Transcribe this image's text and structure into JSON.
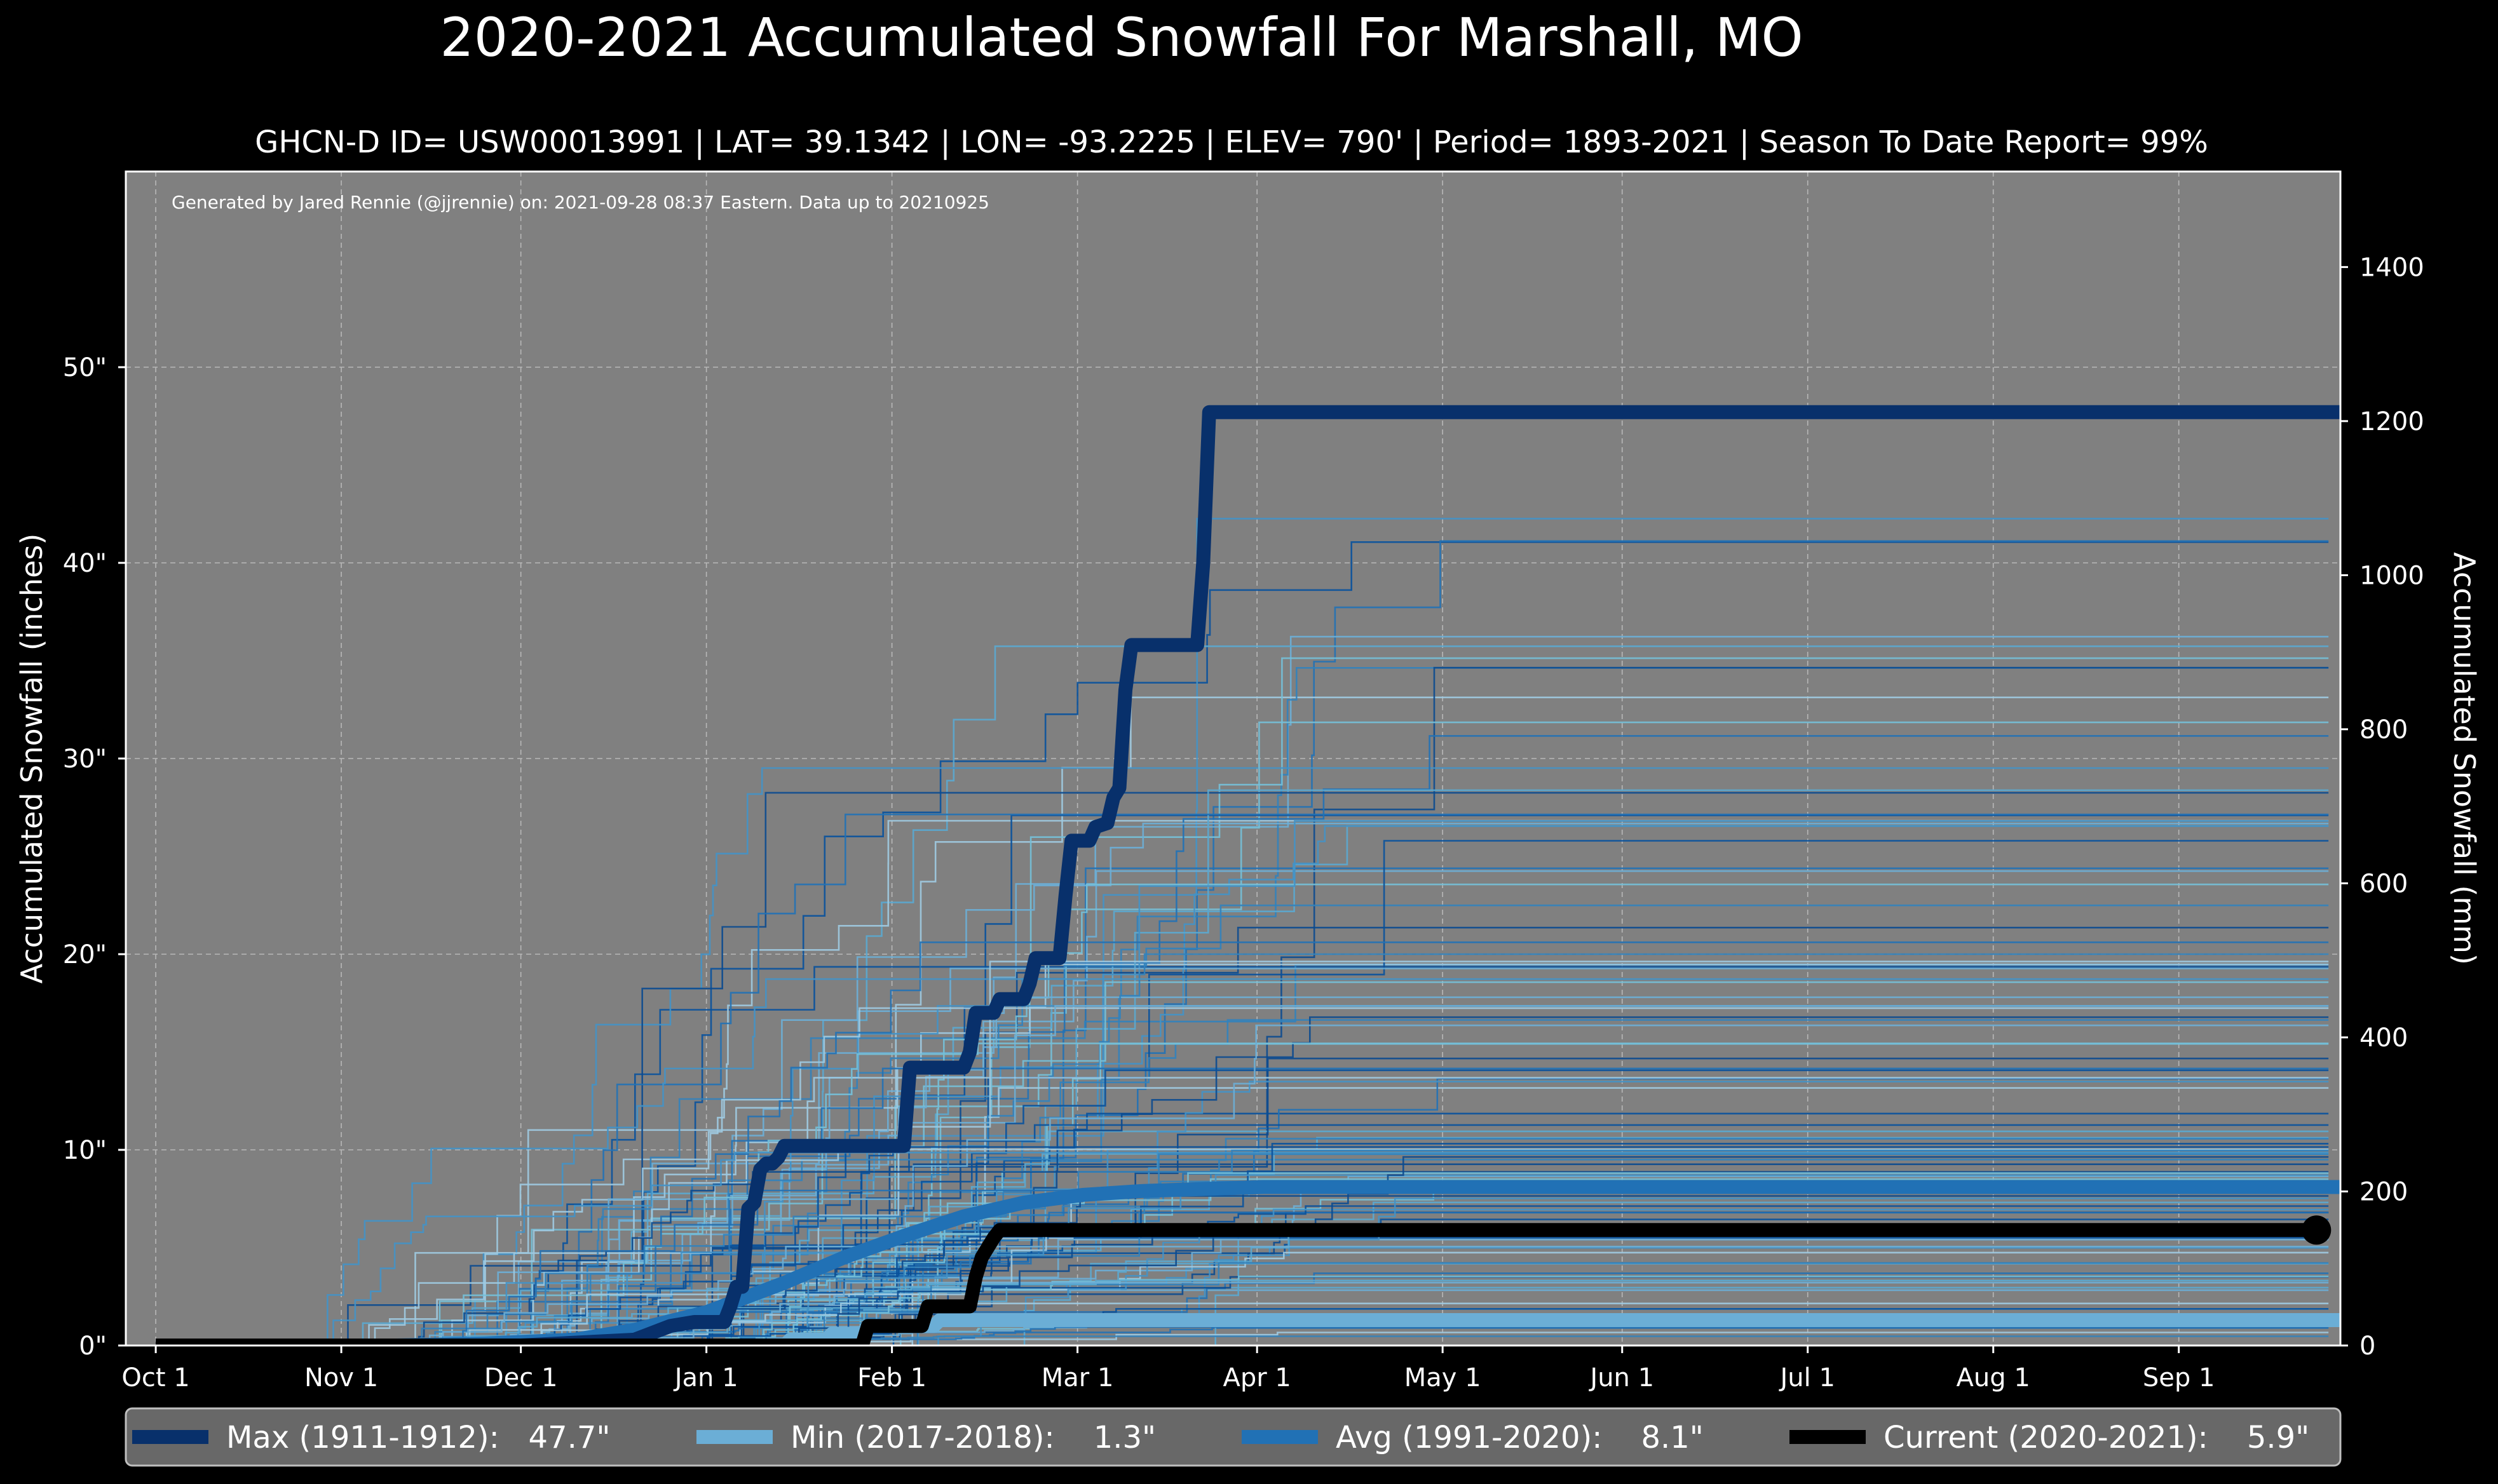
{
  "chart_data": {
    "type": "line",
    "title": "2020-2021 Accumulated Snowfall For Marshall, MO",
    "subtitle": "GHCN-D ID= USW00013991 | LAT= 39.1342 | LON= -93.2225 | ELEV= 790' | Period= 1893-2021 | Season To Date Report= 99%",
    "credit": "Generated by Jared Rennie (@jjrennie) on: 2021-09-28 08:37 Eastern. Data up to 20210925",
    "ylabel": "Accumulated Snowfall (inches)",
    "ylabel_right": "Accumulated Snowfall (mm)",
    "ylim": [
      0,
      60
    ],
    "ylim_right_mm": [
      0,
      1524
    ],
    "yticks": [
      "0\"",
      "10\"",
      "20\"",
      "30\"",
      "40\"",
      "50\""
    ],
    "yticks_right": [
      "0",
      "200",
      "400",
      "600",
      "800",
      "1000",
      "1200",
      "1400"
    ],
    "xlim_days": [
      -5,
      365
    ],
    "xticks": [
      {
        "label": "Oct 1",
        "day": 0
      },
      {
        "label": "Nov 1",
        "day": 31
      },
      {
        "label": "Dec 1",
        "day": 61
      },
      {
        "label": "Jan 1",
        "day": 92
      },
      {
        "label": "Feb 1",
        "day": 123
      },
      {
        "label": "Mar 1",
        "day": 154
      },
      {
        "label": "Apr 1",
        "day": 184
      },
      {
        "label": "May 1",
        "day": 215
      },
      {
        "label": "Jun 1",
        "day": 245
      },
      {
        "label": "Jul 1",
        "day": 276
      },
      {
        "label": "Aug 1",
        "day": 307
      },
      {
        "label": "Sep 1",
        "day": 338
      }
    ],
    "grid": true,
    "legend_position": "bottom",
    "series": [
      {
        "name": "Max",
        "legend": "Max (1911-1912):   47.7\"",
        "color": "#08306b",
        "total": 47.7,
        "points": [
          [
            0,
            0
          ],
          [
            61,
            0
          ],
          [
            80,
            0.3
          ],
          [
            86,
            1
          ],
          [
            90,
            1.2
          ],
          [
            95,
            1.2
          ],
          [
            96,
            2
          ],
          [
            97,
            3
          ],
          [
            98,
            3
          ],
          [
            99,
            7
          ],
          [
            100,
            7.3
          ],
          [
            101,
            9
          ],
          [
            102,
            9.3
          ],
          [
            103,
            9.3
          ],
          [
            104,
            9.6
          ],
          [
            105,
            10.2
          ],
          [
            125,
            10.2
          ],
          [
            126,
            14.2
          ],
          [
            135,
            14.2
          ],
          [
            136,
            15
          ],
          [
            137,
            17
          ],
          [
            140,
            17
          ],
          [
            141,
            17.7
          ],
          [
            145,
            17.7
          ],
          [
            146,
            18.5
          ],
          [
            147,
            19.8
          ],
          [
            151,
            19.8
          ],
          [
            152,
            23
          ],
          [
            153,
            25.8
          ],
          [
            156,
            25.8
          ],
          [
            157,
            26.5
          ],
          [
            159,
            26.7
          ],
          [
            160,
            28
          ],
          [
            161,
            28.5
          ],
          [
            162,
            33.5
          ],
          [
            163,
            35.8
          ],
          [
            174,
            35.8
          ],
          [
            175,
            40
          ],
          [
            176,
            47.7
          ],
          [
            365,
            47.7
          ]
        ]
      },
      {
        "name": "Min",
        "legend": "Min (2017-2018):    1.3\"",
        "color": "#6baed6",
        "total": 1.3,
        "points": [
          [
            0,
            0
          ],
          [
            105,
            0
          ],
          [
            106,
            0.3
          ],
          [
            112,
            0.3
          ],
          [
            113,
            0.6
          ],
          [
            118,
            0.6
          ],
          [
            119,
            1.0
          ],
          [
            130,
            1.0
          ],
          [
            131,
            1.3
          ],
          [
            365,
            1.3
          ]
        ]
      },
      {
        "name": "Avg",
        "legend": "Avg (1991-2020):    8.1\"",
        "color": "#2171b5",
        "total": 8.1,
        "points": [
          [
            0,
            0
          ],
          [
            40,
            0
          ],
          [
            55,
            0.1
          ],
          [
            70,
            0.3
          ],
          [
            80,
            0.8
          ],
          [
            92,
            1.7
          ],
          [
            105,
            3.2
          ],
          [
            115,
            4.5
          ],
          [
            125,
            5.6
          ],
          [
            135,
            6.6
          ],
          [
            145,
            7.3
          ],
          [
            155,
            7.7
          ],
          [
            165,
            7.9
          ],
          [
            175,
            8.0
          ],
          [
            185,
            8.1
          ],
          [
            365,
            8.1
          ]
        ]
      },
      {
        "name": "Current",
        "legend": "Current (2020-2021):    5.9\"",
        "color": "#000000",
        "total": 5.9,
        "points": [
          [
            0,
            0
          ],
          [
            118,
            0
          ],
          [
            119,
            1
          ],
          [
            128,
            1
          ],
          [
            129,
            2
          ],
          [
            136,
            2
          ],
          [
            137,
            3.5
          ],
          [
            138,
            4.5
          ],
          [
            139,
            5
          ],
          [
            140,
            5.5
          ],
          [
            141,
            5.9
          ],
          [
            361,
            5.9
          ]
        ]
      }
    ]
  }
}
